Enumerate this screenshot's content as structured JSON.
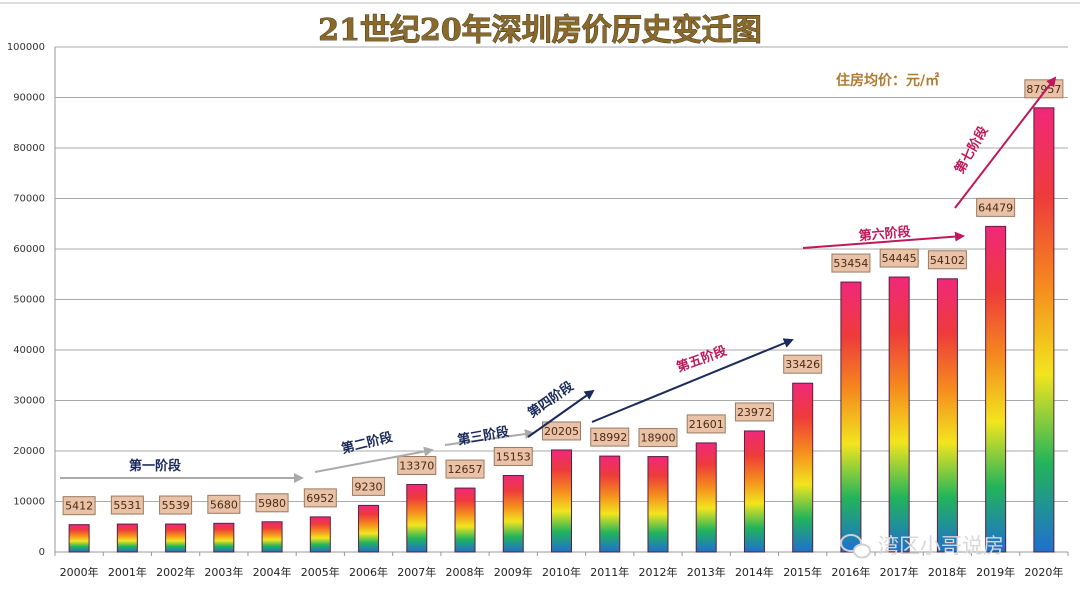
{
  "chart_data": {
    "type": "bar",
    "title": "21世纪20年深圳房价历史变迁图",
    "unit_label": "住房均价：元/㎡",
    "categories": [
      "2000年",
      "2001年",
      "2002年",
      "2003年",
      "2004年",
      "2005年",
      "2006年",
      "2007年",
      "2008年",
      "2009年",
      "2010年",
      "2011年",
      "2012年",
      "2013年",
      "2014年",
      "2015年",
      "2016年",
      "2017年",
      "2018年",
      "2019年",
      "2020年"
    ],
    "values": [
      5412,
      5531,
      5539,
      5680,
      5980,
      6952,
      9230,
      13370,
      12657,
      15153,
      20205,
      18992,
      18900,
      21601,
      23972,
      33426,
      53454,
      54445,
      54102,
      64479,
      87957
    ],
    "ylim": [
      0,
      100000
    ],
    "yticks": [
      0,
      10000,
      20000,
      30000,
      40000,
      50000,
      60000,
      70000,
      80000,
      90000,
      100000
    ],
    "grid": true,
    "bar_gradient": [
      "#1f6fd0",
      "#22b45a",
      "#f2e51e",
      "#f58a1e",
      "#ee3b3b",
      "#f0287a"
    ],
    "stages": [
      {
        "label": "第一阶段",
        "color": "#1a2a5a",
        "arrow_color": "#aaaaaa"
      },
      {
        "label": "第二阶段",
        "color": "#1a2a5a",
        "arrow_color": "#aaaaaa"
      },
      {
        "label": "第三阶段",
        "color": "#1a2a5a",
        "arrow_color": "#aaaaaa"
      },
      {
        "label": "第四阶段",
        "color": "#1a2a5a",
        "arrow_color": "#1a2a5a"
      },
      {
        "label": "第五阶段",
        "color": "#c0185a",
        "arrow_color": "#1a2a5a"
      },
      {
        "label": "第六阶段",
        "color": "#c0185a",
        "arrow_color": "#c0185a"
      },
      {
        "label": "第七阶段",
        "color": "#c0185a",
        "arrow_color": "#c0185a"
      }
    ]
  },
  "watermark": "湾区小哥说房"
}
